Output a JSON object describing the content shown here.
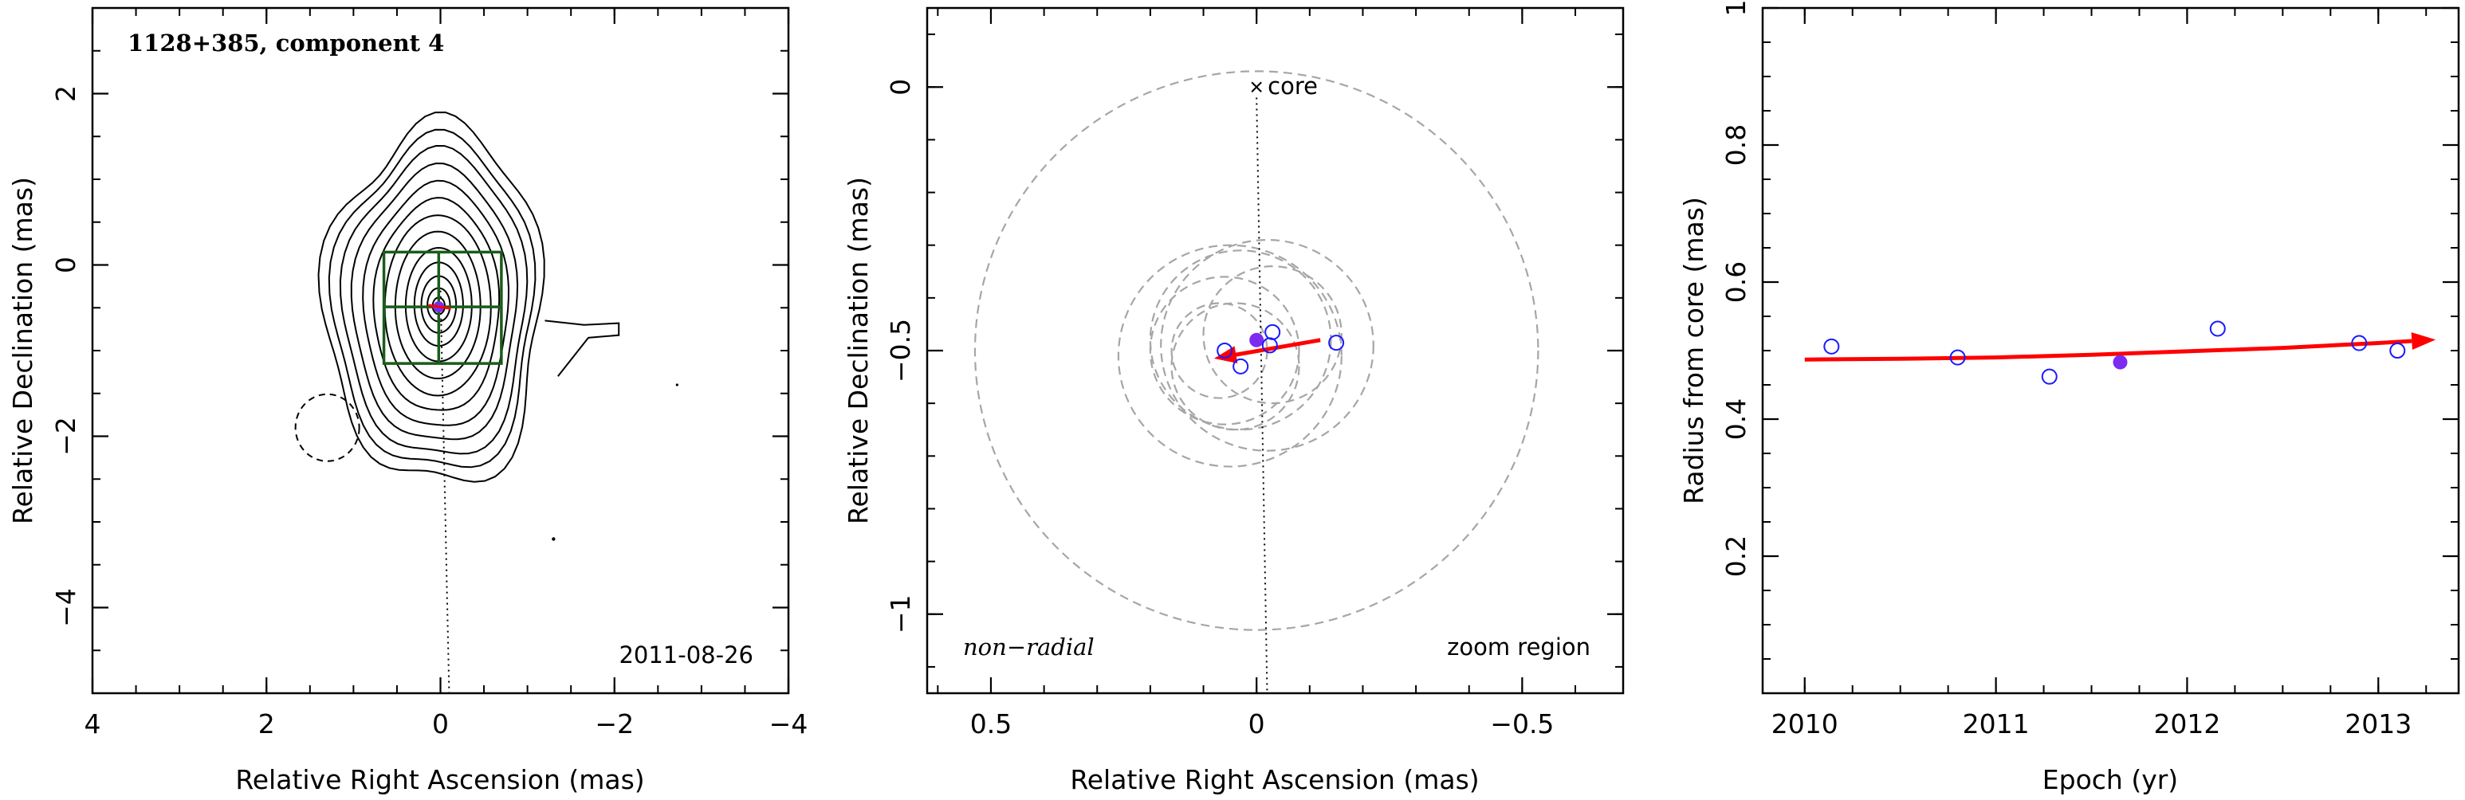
{
  "chart_data": [
    {
      "type": "contour",
      "title": "1128+385, component 4",
      "xlabel": "Relative Right Ascension (mas)",
      "ylabel": "Relative Declination (mas)",
      "xlim": [
        4,
        -4
      ],
      "ylim": [
        -5,
        3
      ],
      "xticks": [
        4,
        2,
        0,
        -2,
        -4
      ],
      "xtick_labels": [
        "4",
        "2",
        "0",
        "−2",
        "−4"
      ],
      "yticks": [
        2,
        0,
        -2,
        -4
      ],
      "ytick_labels": [
        "2",
        "0",
        "−2",
        "−4"
      ],
      "date": "2011-08-26",
      "component_position": {
        "x": 0.02,
        "y": -0.49
      },
      "zoom_box": {
        "x": [
          0.65,
          -0.7
        ],
        "y": [
          0.15,
          -1.15
        ]
      },
      "colors": {
        "contour": "#000000",
        "zoom_box": "#1a5c1a",
        "component": "#7b2cf0",
        "arrow": "#ff0000"
      }
    },
    {
      "type": "scatter",
      "xlabel": "Relative Right Ascension (mas)",
      "ylabel": "Relative Declination (mas)",
      "xlim": [
        0.62,
        -0.69
      ],
      "ylim": [
        -1.15,
        0.15
      ],
      "xticks": [
        0.5,
        0,
        -0.5
      ],
      "xtick_labels": [
        "0.5",
        "0",
        "−0.5"
      ],
      "yticks": [
        0,
        -0.5,
        -1
      ],
      "ytick_labels": [
        "0",
        "−0.5",
        "−1"
      ],
      "core_label": "core",
      "core_position": {
        "x": 0,
        "y": 0
      },
      "motion_label": "non−radial",
      "region_label": "zoom region",
      "points": [
        {
          "x": 0.06,
          "y": -0.5,
          "filled": false
        },
        {
          "x": 0.03,
          "y": -0.53,
          "filled": false
        },
        {
          "x": 0.0,
          "y": -0.48,
          "filled": true
        },
        {
          "x": -0.025,
          "y": -0.49,
          "filled": false
        },
        {
          "x": -0.03,
          "y": -0.465,
          "filled": false
        },
        {
          "x": -0.15,
          "y": -0.485,
          "filled": false
        }
      ],
      "error_circles": [
        {
          "x": 0.0,
          "y": -0.5,
          "r": 0.53
        },
        {
          "x": -0.02,
          "y": -0.49,
          "r": 0.2
        },
        {
          "x": 0.05,
          "y": -0.51,
          "r": 0.21
        },
        {
          "x": 0.03,
          "y": -0.48,
          "r": 0.17
        },
        {
          "x": 0.06,
          "y": -0.5,
          "r": 0.14
        },
        {
          "x": 0.04,
          "y": -0.53,
          "r": 0.12
        },
        {
          "x": -0.03,
          "y": -0.47,
          "r": 0.13
        },
        {
          "x": 0.07,
          "y": -0.5,
          "r": 0.09
        }
      ],
      "arrow": {
        "from": {
          "x": -0.12,
          "y": -0.48
        },
        "to": {
          "x": 0.08,
          "y": -0.515
        }
      },
      "colors": {
        "open_marker": "#1a1aff",
        "filled_marker": "#7b2cf0",
        "arrow": "#ff0000",
        "circles": "#a6a6a6"
      }
    },
    {
      "type": "scatter",
      "xlabel": "Epoch (yr)",
      "ylabel": "Radius from core (mas)",
      "xlim": [
        2009.78,
        2013.42
      ],
      "ylim": [
        0,
        1
      ],
      "xticks": [
        2010,
        2011,
        2012,
        2013
      ],
      "xtick_labels": [
        "2010",
        "2011",
        "2012",
        "2013"
      ],
      "yticks": [
        0.2,
        0.4,
        0.6,
        0.8,
        1
      ],
      "ytick_labels": [
        "0.2",
        "0.4",
        "0.6",
        "0.8",
        "1"
      ],
      "points": [
        {
          "x": 2010.14,
          "y": 0.506,
          "filled": false
        },
        {
          "x": 2010.8,
          "y": 0.49,
          "filled": false
        },
        {
          "x": 2011.28,
          "y": 0.462,
          "filled": false
        },
        {
          "x": 2011.65,
          "y": 0.483,
          "filled": true
        },
        {
          "x": 2012.16,
          "y": 0.532,
          "filled": false
        },
        {
          "x": 2012.9,
          "y": 0.511,
          "filled": false
        },
        {
          "x": 2013.1,
          "y": 0.5,
          "filled": false
        }
      ],
      "fit": {
        "x": [
          2010.0,
          2010.5,
          2011.0,
          2011.5,
          2012.0,
          2012.5,
          2013.0,
          2013.3
        ],
        "y": [
          0.487,
          0.488,
          0.49,
          0.494,
          0.499,
          0.504,
          0.511,
          0.516
        ]
      },
      "colors": {
        "open_marker": "#1a1aff",
        "filled_marker": "#7b2cf0",
        "fit": "#ff0000"
      }
    }
  ]
}
